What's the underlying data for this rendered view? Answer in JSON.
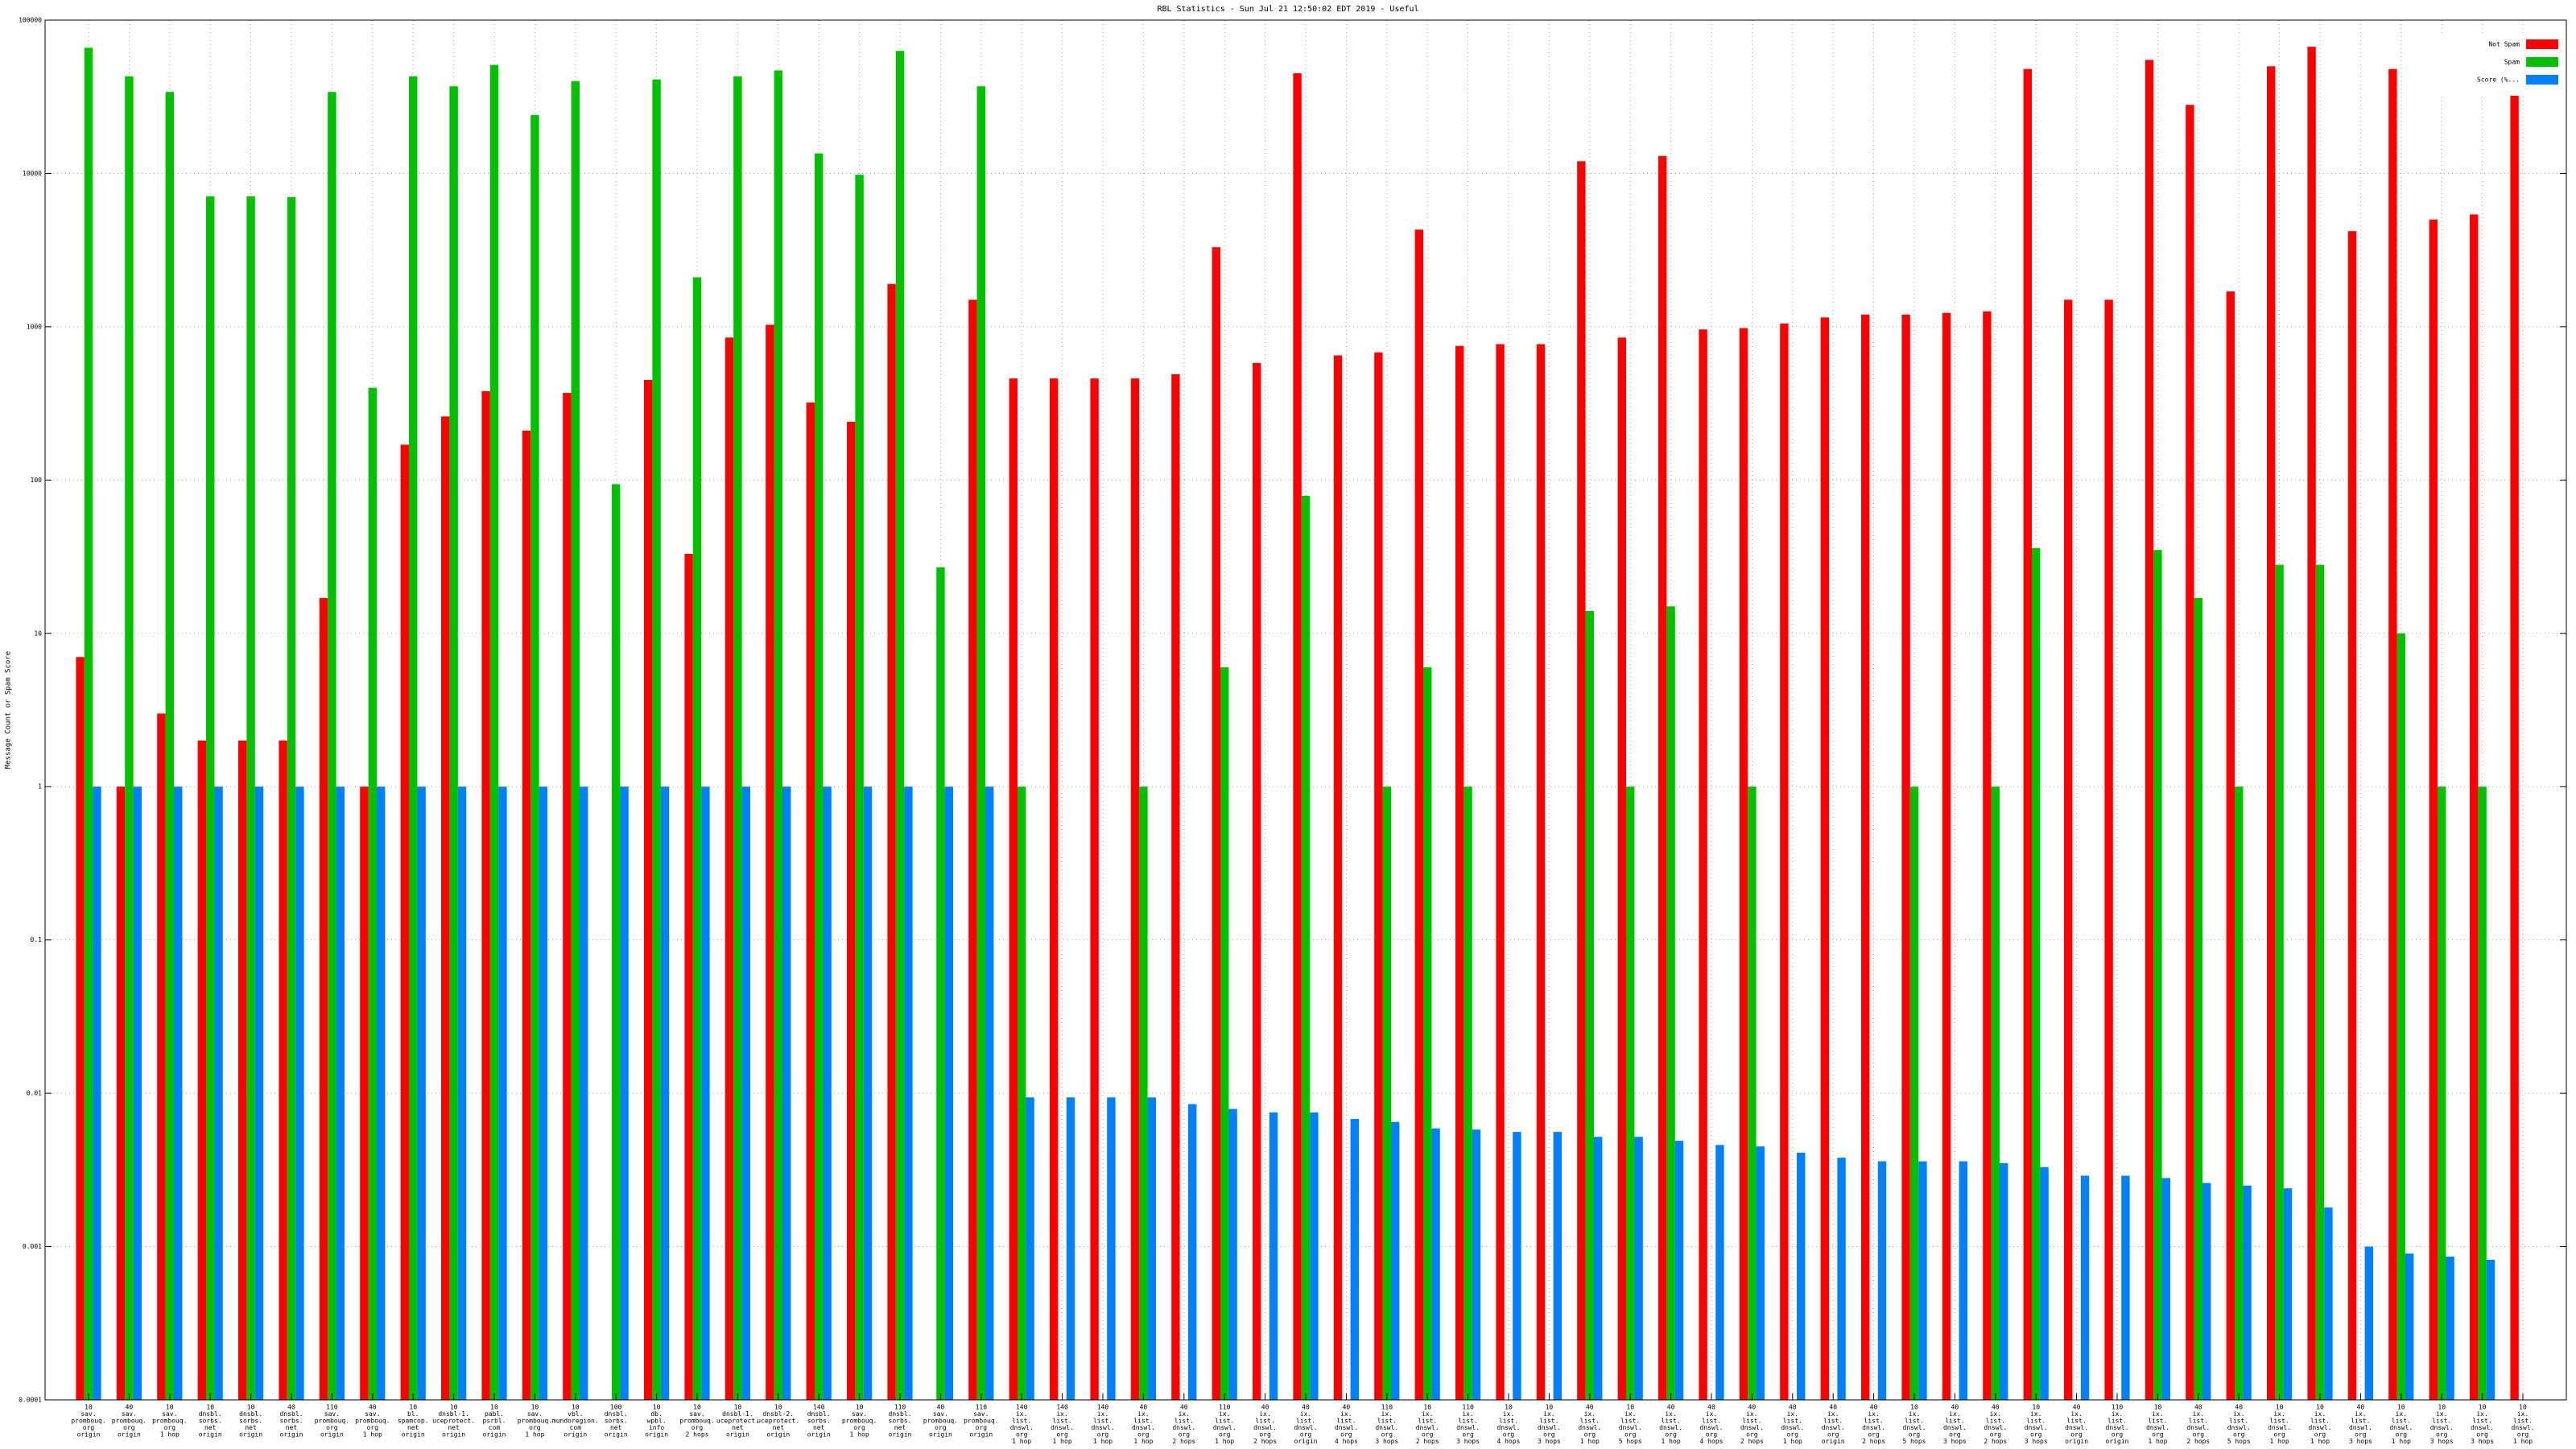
{
  "chart_data": {
    "type": "bar",
    "title": "RBL Statistics - Sun Jul 21 12:50:02 EDT 2019 - Useful",
    "y_label": "Message Count or Spam Score",
    "log_scale": true,
    "grid": true,
    "legend": "top-right",
    "ylim": [
      0.0001,
      100000
    ],
    "yticks": [
      0.0001,
      0.001,
      0.01,
      0.1,
      1,
      10,
      100,
      1000,
      10000,
      100000
    ],
    "categories": [
      [
        "10",
        "sav.",
        "prombouq.",
        "org",
        "origin"
      ],
      [
        "40",
        "sav.",
        "prombouq.",
        "org",
        "origin"
      ],
      [
        "10",
        "sav.",
        "prombouq.",
        "org",
        "1 hop"
      ],
      [
        "10",
        "dnsbl.",
        "sorbs.",
        "net",
        "origin"
      ],
      [
        "10",
        "dnsbl.",
        "sorbs.",
        "net",
        "origin"
      ],
      [
        "40",
        "dnsbl.",
        "sorbs.",
        "net",
        "origin"
      ],
      [
        "110",
        "sav.",
        "prombouq.",
        "org",
        "origin"
      ],
      [
        "40",
        "sav.",
        "prombouq.",
        "org",
        "1 hop"
      ],
      [
        "10",
        "bl.",
        "spamcop.",
        "net",
        "origin"
      ],
      [
        "10",
        "dnsbl-1.",
        "uceprotect.",
        "net",
        "origin"
      ],
      [
        "10",
        "pabl.",
        "psrbl.",
        "com",
        "origin"
      ],
      [
        "10",
        "sav.",
        "prombouq.",
        "org",
        "1 hop"
      ],
      [
        "10",
        "vbl.",
        "mundoregion.",
        "com",
        "origin"
      ],
      [
        "100",
        "dnsbl.",
        "sorbs.",
        "net",
        "origin"
      ],
      [
        "10",
        "db.",
        "wpbl.",
        "info",
        "origin"
      ],
      [
        "10",
        "sav.",
        "prombouq.",
        "org",
        "2 hops"
      ],
      [
        "10",
        "dnsbl-1.",
        "uceprotect.",
        "net",
        "origin"
      ],
      [
        "10",
        "dnsbl-2.",
        "uceprotect.",
        "net",
        "origin"
      ],
      [
        "140",
        "dnsbl.",
        "sorbs.",
        "net",
        "origin"
      ],
      [
        "10",
        "sav.",
        "prombouq.",
        "org",
        "1 hop"
      ],
      [
        "110",
        "dnsbl.",
        "sorbs.",
        "net",
        "origin"
      ],
      [
        "40",
        "sav.",
        "prombouq.",
        "org",
        "origin"
      ],
      [
        "110",
        "sav.",
        "prombouq.",
        "org",
        "origin"
      ],
      [
        "140",
        "ix.",
        "list.",
        "dnswl.",
        "org",
        "1 hop"
      ],
      [
        "140",
        "ix.",
        "list.",
        "dnswl.",
        "org",
        "1 hop"
      ],
      [
        "140",
        "ix.",
        "list.",
        "dnswl.",
        "org",
        "1 hop"
      ],
      [
        "40",
        "ix.",
        "list.",
        "dnswl.",
        "org",
        "1 hop"
      ],
      [
        "40",
        "ix.",
        "list.",
        "dnswl.",
        "org",
        "2 hops"
      ],
      [
        "110",
        "ix.",
        "list.",
        "dnswl.",
        "org",
        "1 hop"
      ],
      [
        "40",
        "ix.",
        "list.",
        "dnswl.",
        "org",
        "2 hops"
      ],
      [
        "40",
        "ix.",
        "list.",
        "dnswl.",
        "org",
        "origin"
      ],
      [
        "40",
        "ix.",
        "list.",
        "dnswl.",
        "org",
        "4 hops"
      ],
      [
        "110",
        "ix.",
        "list.",
        "dnswl.",
        "org",
        "3 hops"
      ],
      [
        "10",
        "ix.",
        "list.",
        "dnswl.",
        "org",
        "2 hops"
      ],
      [
        "110",
        "ix.",
        "list.",
        "dnswl.",
        "org",
        "3 hops"
      ],
      [
        "10",
        "ix.",
        "list.",
        "dnswl.",
        "org",
        "4 hops"
      ],
      [
        "10",
        "ix.",
        "list.",
        "dnswl.",
        "org",
        "3 hops"
      ],
      [
        "40",
        "ix.",
        "list.",
        "dnswl.",
        "org",
        "1 hop"
      ],
      [
        "10",
        "ix.",
        "list.",
        "dnswl.",
        "org",
        "5 hops"
      ],
      [
        "40",
        "ix.",
        "list.",
        "dnswl.",
        "org",
        "1 hop"
      ],
      [
        "40",
        "ix.",
        "list.",
        "dnswl.",
        "org",
        "4 hops"
      ],
      [
        "40",
        "ix.",
        "list.",
        "dnswl.",
        "org",
        "2 hops"
      ],
      [
        "40",
        "ix.",
        "list.",
        "dnswl.",
        "org",
        "1 hop"
      ],
      [
        "40",
        "ix.",
        "list.",
        "dnswl.",
        "org",
        "origin"
      ],
      [
        "40",
        "ix.",
        "list.",
        "dnswl.",
        "org",
        "2 hops"
      ],
      [
        "10",
        "ix.",
        "list.",
        "dnswl.",
        "org",
        "5 hops"
      ],
      [
        "40",
        "ix.",
        "list.",
        "dnswl.",
        "org",
        "3 hops"
      ],
      [
        "40",
        "ix.",
        "list.",
        "dnswl.",
        "org",
        "2 hops"
      ],
      [
        "10",
        "ix.",
        "list.",
        "dnswl.",
        "org",
        "3 hops"
      ],
      [
        "40",
        "ix.",
        "list.",
        "dnswl.",
        "org",
        "origin"
      ],
      [
        "110",
        "ix.",
        "list.",
        "dnswl.",
        "org",
        "origin"
      ],
      [
        "10",
        "ix.",
        "list.",
        "dnswl.",
        "org",
        "1 hop"
      ],
      [
        "40",
        "ix.",
        "list.",
        "dnswl.",
        "org",
        "2 hops"
      ],
      [
        "40",
        "ix.",
        "list.",
        "dnswl.",
        "org",
        "5 hops"
      ],
      [
        "10",
        "ix.",
        "list.",
        "dnswl.",
        "org",
        "1 hop"
      ],
      [
        "10",
        "ix.",
        "list.",
        "dnswl.",
        "org",
        "1 hop"
      ],
      [
        "40",
        "ix.",
        "list.",
        "dnswl.",
        "org",
        "3 hops"
      ],
      [
        "10",
        "ix.",
        "list.",
        "dnswl.",
        "org",
        "1 hop"
      ],
      [
        "10",
        "ix.",
        "list.",
        "dnswl.",
        "org",
        "3 hops"
      ],
      [
        "10",
        "ix.",
        "list.",
        "dnswl.",
        "org",
        "3 hops"
      ],
      [
        "10",
        "ix.",
        "list.",
        "dnswl.",
        "org",
        "1 hop"
      ]
    ],
    "series": [
      {
        "name": "Not Spam",
        "color": "#ff0000",
        "values": [
          7,
          1,
          3,
          2,
          2,
          2,
          17,
          1,
          170,
          260,
          380,
          210,
          370,
          null,
          450,
          33,
          850,
          1030,
          320,
          240,
          1900,
          null,
          1500,
          460,
          460,
          460,
          460,
          490,
          3300,
          580,
          45000,
          650,
          680,
          4300,
          750,
          770,
          770,
          12000,
          850,
          13000,
          960,
          980,
          1050,
          1150,
          1200,
          1200,
          1230,
          1260,
          48000,
          1500,
          1500,
          55000,
          28000,
          1700,
          50000,
          67000,
          4200,
          48000,
          5000,
          5400,
          61000
        ]
      },
      {
        "name": "Spam",
        "color": "#00c000",
        "values": [
          66000,
          43000,
          34000,
          7100,
          7100,
          7000,
          34000,
          400,
          43000,
          37000,
          51000,
          24000,
          40000,
          94,
          41000,
          2100,
          43000,
          47000,
          13500,
          9800,
          63000,
          27,
          37000,
          1,
          null,
          null,
          1,
          null,
          6,
          null,
          79,
          null,
          1,
          6,
          1,
          null,
          null,
          14,
          1,
          15,
          null,
          1,
          null,
          null,
          null,
          1,
          null,
          1,
          36,
          null,
          null,
          35,
          17,
          1,
          28,
          28,
          null,
          10,
          1,
          1,
          null
        ]
      },
      {
        "name": "Score (%...",
        "color": "#0080ff",
        "values": [
          1,
          1,
          1,
          1,
          1,
          1,
          1,
          1,
          1,
          1,
          1,
          1,
          1,
          1,
          1,
          1,
          1,
          1,
          1,
          1,
          1,
          1,
          1,
          0.0094,
          0.0094,
          0.0094,
          0.0094,
          0.0085,
          0.0079,
          0.0075,
          0.0075,
          0.0068,
          0.0065,
          0.0059,
          0.0058,
          0.0056,
          0.0056,
          0.0052,
          0.0052,
          0.0049,
          0.0046,
          0.0045,
          0.0041,
          0.0038,
          0.0036,
          0.0036,
          0.0036,
          0.0035,
          0.0033,
          0.0029,
          0.0029,
          0.0028,
          0.0026,
          0.0025,
          0.0024,
          0.0018,
          0.001,
          0.0009,
          0.00086,
          0.00082,
          null
        ]
      }
    ]
  }
}
